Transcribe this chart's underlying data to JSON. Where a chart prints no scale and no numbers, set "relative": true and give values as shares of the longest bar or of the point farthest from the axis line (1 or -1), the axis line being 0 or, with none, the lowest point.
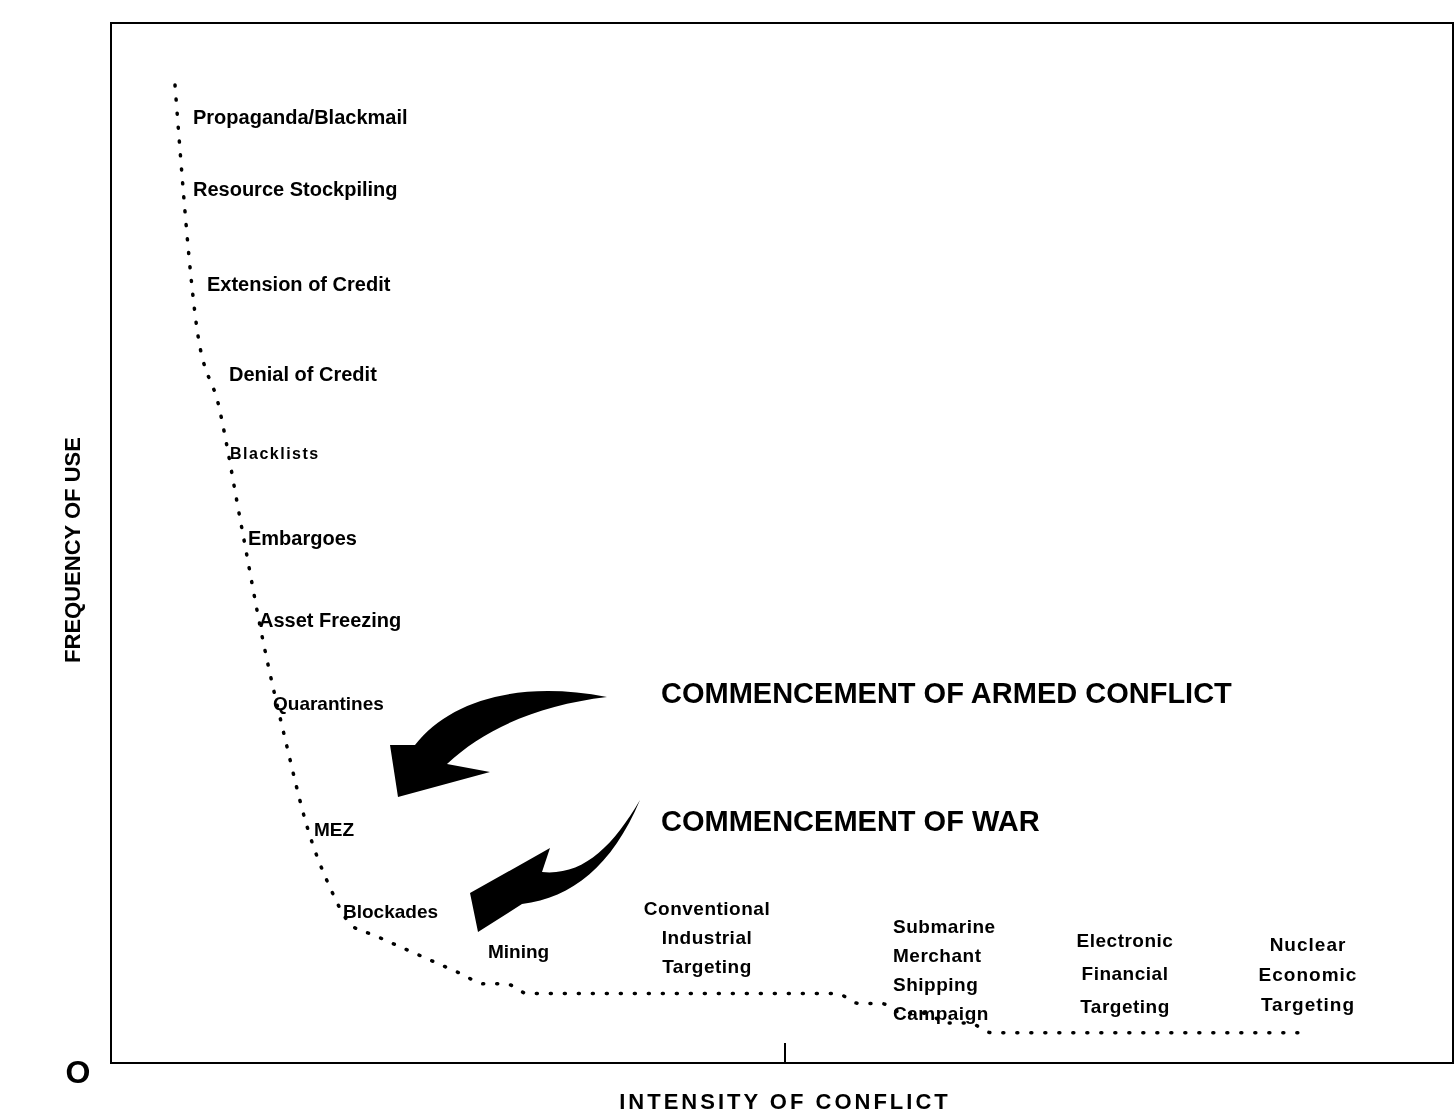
{
  "chart_data": {
    "type": "line",
    "relative": true,
    "xlabel": "INTENSITY OF CONFLICT",
    "ylabel": "FREQUENCY OF USE",
    "categories": [
      null,
      null,
      null,
      null,
      null,
      null,
      null,
      null,
      null,
      null,
      null,
      null,
      null,
      null,
      null,
      null,
      null,
      null,
      null,
      null,
      null,
      null,
      null,
      null,
      null,
      null,
      null,
      null,
      null,
      null,
      null,
      null,
      null,
      null,
      null,
      null,
      null,
      null,
      null,
      null,
      null,
      null,
      null,
      null,
      null,
      null,
      null,
      null,
      null,
      null,
      null,
      null
    ],
    "series": [
      {
        "color": "#000000",
        "values": [
          1.0,
          0.75,
          0.67,
          0.55,
          0.43,
          0.33,
          0.24,
          0.18,
          0.14,
          0.13,
          0.12,
          0.11,
          0.1,
          0.09,
          0.08,
          0.08,
          0.07,
          0.07,
          0.07,
          0.07,
          0.07,
          0.07,
          0.07,
          0.07,
          0.07,
          0.07,
          0.07,
          0.07,
          0.07,
          0.07,
          0.07,
          0.06,
          0.06,
          0.05,
          0.05,
          0.04,
          0.04,
          0.03,
          0.03,
          0.03,
          0.03,
          0.03,
          0.03,
          0.03,
          0.03,
          0.03,
          0.03,
          0.03,
          0.03,
          0.03,
          0.03,
          0.03
        ]
      }
    ],
    "line_style": "dotted",
    "marker": "none",
    "annotations": [
      "O",
      "Propaganda/Blackmail",
      "Resource  Stockpiling",
      "Extension of Credit",
      "Denial of Credit",
      "Blacklists",
      "Embargoes",
      "Asset Freezing",
      "Quarantines",
      "MEZ",
      "Blockades",
      "Mining",
      "Conventional\nIndustrial\nTargeting",
      "Submarine\nMerchant\nShipping\nCampaign",
      "Electronic\nFinancial\nTargeting",
      "Nuclear\nEconomic\nTargeting",
      "COMMENCEMENT OF ARMED CONFLICT",
      "COMMENCEMENT OF WAR"
    ]
  }
}
